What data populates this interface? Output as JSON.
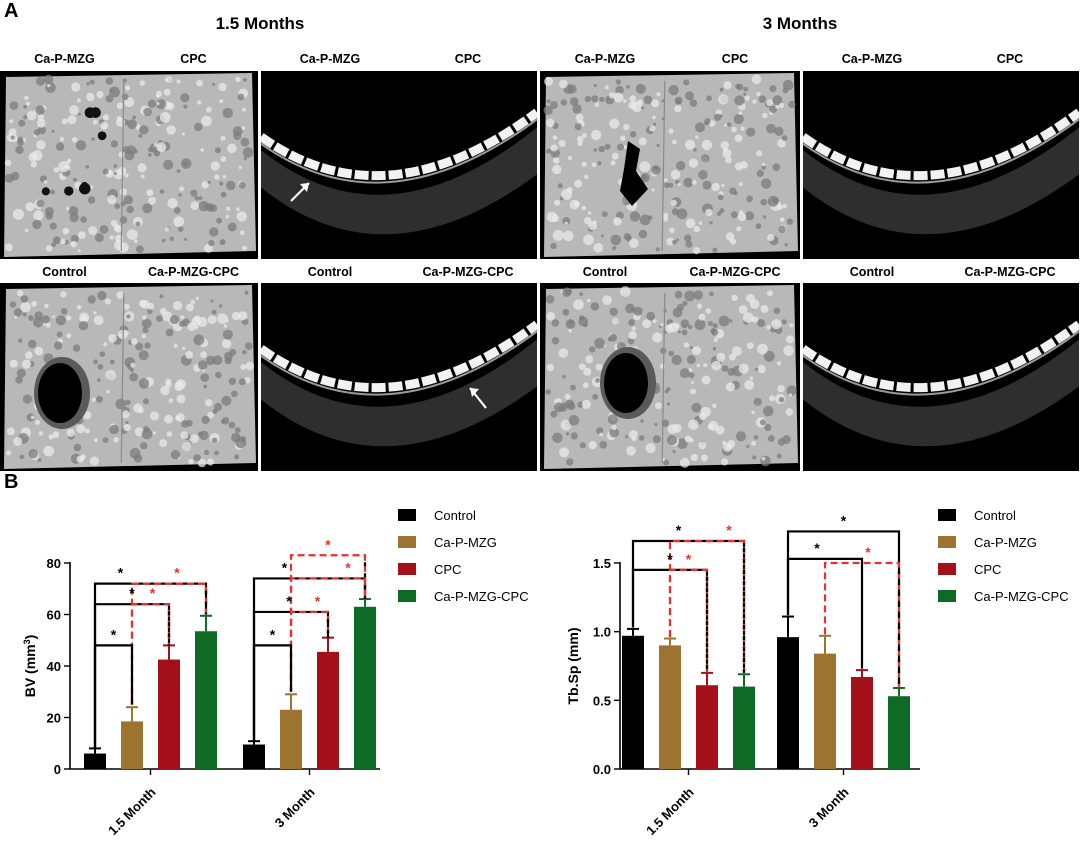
{
  "panel_labels": {
    "a": "A",
    "b": "B"
  },
  "timepoints": {
    "t1": "1.5 Months",
    "t2": "3 Months"
  },
  "image_panels": [
    {
      "left_label": "Ca-P-MZG",
      "right_label": "CPC",
      "view": "3d"
    },
    {
      "left_label": "Ca-P-MZG",
      "right_label": "CPC",
      "view": "slice"
    },
    {
      "left_label": "Ca-P-MZG",
      "right_label": "CPC",
      "view": "3d"
    },
    {
      "left_label": "Ca-P-MZG",
      "right_label": "CPC",
      "view": "slice"
    },
    {
      "left_label": "Control",
      "right_label": "Ca-P-MZG-CPC",
      "view": "3d"
    },
    {
      "left_label": "Control",
      "right_label": "Ca-P-MZG-CPC",
      "view": "slice"
    },
    {
      "left_label": "Control",
      "right_label": "Ca-P-MZG-CPC",
      "view": "3d"
    },
    {
      "left_label": "Control",
      "right_label": "Ca-P-MZG-CPC",
      "view": "slice"
    }
  ],
  "colors": {
    "Control": "#000000",
    "Ca-P-MZG": "#9c7430",
    "CPC": "#a3101a",
    "Ca-P-MZG-CPC": "#0e6b25",
    "sig_red": "#e8312e"
  },
  "chart_data": [
    {
      "type": "bar",
      "categories": [
        "1.5 Month",
        "3 Month"
      ],
      "ylabel": "BV (mm3)",
      "ylim": [
        0,
        80
      ],
      "yticks": [
        0,
        20,
        40,
        60,
        80
      ],
      "legend": "right",
      "series": [
        {
          "name": "Control",
          "values": [
            6,
            9.5
          ],
          "errors": [
            2,
            1.3
          ]
        },
        {
          "name": "Ca-P-MZG",
          "values": [
            18.5,
            23
          ],
          "errors": [
            5.5,
            6
          ]
        },
        {
          "name": "CPC",
          "values": [
            42.5,
            45.5
          ],
          "errors": [
            5.5,
            5.5
          ]
        },
        {
          "name": "Ca-P-MZG-CPC",
          "values": [
            53.5,
            63
          ],
          "errors": [
            6,
            3
          ]
        }
      ],
      "significance": "*"
    },
    {
      "type": "bar",
      "categories": [
        "1.5 Month",
        "3 Month"
      ],
      "ylabel": "Tb.Sp (mm)",
      "ylim": [
        0,
        1.5
      ],
      "yticks": [
        "0.0",
        "0.5",
        "1.0",
        "1.5"
      ],
      "legend": "right",
      "series": [
        {
          "name": "Control",
          "values": [
            0.97,
            0.96
          ],
          "errors": [
            0.05,
            0.15
          ]
        },
        {
          "name": "Ca-P-MZG",
          "values": [
            0.9,
            0.84
          ],
          "errors": [
            0.05,
            0.13
          ]
        },
        {
          "name": "CPC",
          "values": [
            0.61,
            0.67
          ],
          "errors": [
            0.09,
            0.05
          ]
        },
        {
          "name": "Ca-P-MZG-CPC",
          "values": [
            0.6,
            0.53
          ],
          "errors": [
            0.09,
            0.06
          ]
        }
      ],
      "significance": "*"
    }
  ]
}
